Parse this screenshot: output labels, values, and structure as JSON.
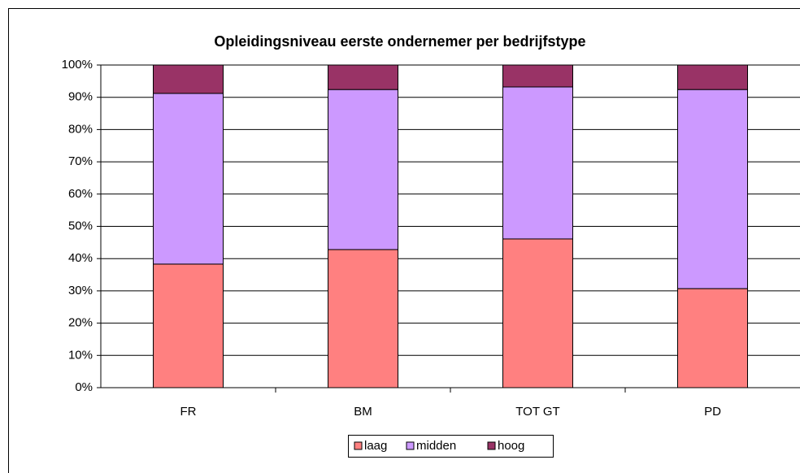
{
  "chart_data": {
    "type": "stacked_bar",
    "title": "Opleidingsniveau eerste ondernemer per bedrijfstype",
    "categories": [
      "FR",
      "BM",
      "TOT GT",
      "PD"
    ],
    "series": [
      {
        "name": "laag",
        "color": "#ff8080",
        "values": [
          38.3,
          42.8,
          46.1,
          30.7
        ]
      },
      {
        "name": "midden",
        "color": "#cc99ff",
        "values": [
          52.9,
          49.6,
          47.1,
          61.7
        ]
      },
      {
        "name": "hoog",
        "color": "#993366",
        "values": [
          8.8,
          7.6,
          6.8,
          7.6
        ]
      }
    ],
    "ylim": [
      0,
      100
    ],
    "yticks": [
      {
        "value": 0,
        "label": "0%"
      },
      {
        "value": 10,
        "label": "10%"
      },
      {
        "value": 20,
        "label": "20%"
      },
      {
        "value": 30,
        "label": "30%"
      },
      {
        "value": 40,
        "label": "40%"
      },
      {
        "value": 50,
        "label": "50%"
      },
      {
        "value": 60,
        "label": "60%"
      },
      {
        "value": 70,
        "label": "70%"
      },
      {
        "value": 80,
        "label": "80%"
      },
      {
        "value": 90,
        "label": "90%"
      },
      {
        "value": 100,
        "label": "100%"
      }
    ],
    "grid": true,
    "legend": "bottom"
  }
}
